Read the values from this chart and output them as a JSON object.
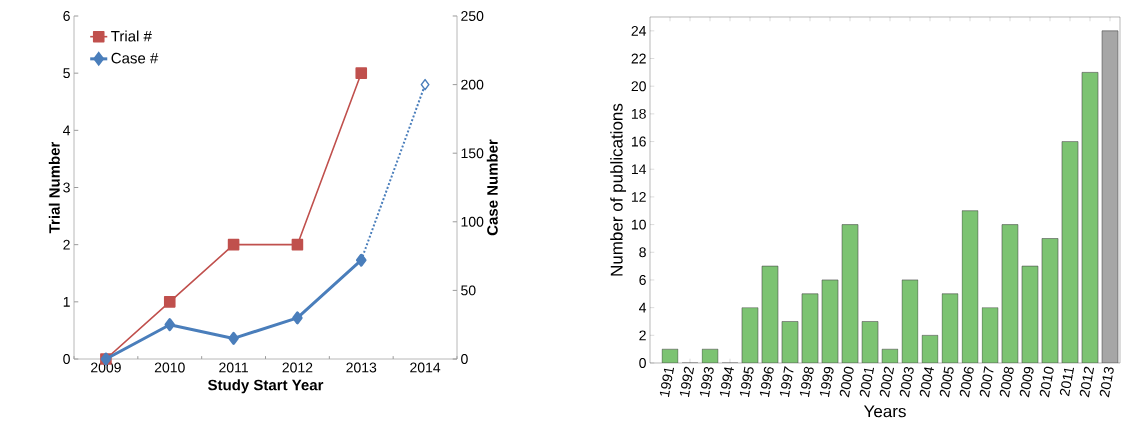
{
  "chart_data": [
    {
      "type": "line",
      "xlabel": "Study Start Year",
      "ylabel": "Trial Number",
      "y2label": "Case Number",
      "categories": [
        "2009",
        "2010",
        "2011",
        "2012",
        "2013",
        "2014"
      ],
      "series": [
        {
          "name": "Trial #",
          "color": "#c0504d",
          "marker": "square",
          "values": [
            0,
            1,
            2,
            2,
            5,
            null
          ]
        },
        {
          "name": "Case #",
          "color": "#4a7ebb",
          "marker": "diamond",
          "axis": "y2",
          "values": [
            0,
            25,
            15,
            30,
            72,
            null
          ]
        },
        {
          "color": "#4a7ebb",
          "marker": "diamond",
          "axis": "y2",
          "line_style": "dotted",
          "values": [
            null,
            null,
            null,
            null,
            72,
            200
          ]
        }
      ],
      "ylim": [
        0,
        6
      ],
      "yticks": [
        0,
        1,
        2,
        3,
        4,
        5,
        6
      ],
      "y2lim": [
        0,
        250
      ],
      "y2ticks": [
        0,
        50,
        100,
        150,
        200,
        250
      ],
      "grid": false,
      "legend": "top left"
    },
    {
      "type": "bar",
      "xlabel": "Years",
      "ylabel": "Number of publications",
      "categories": [
        "1991",
        "1992",
        "1993",
        "1994",
        "1995",
        "1996",
        "1997",
        "1998",
        "1999",
        "2000",
        "2001",
        "2002",
        "2003",
        "2004",
        "2005",
        "2006",
        "2007",
        "2008",
        "2009",
        "2010",
        "2011",
        "2012",
        "2013"
      ],
      "values": [
        1,
        0,
        1,
        0,
        4,
        7,
        3,
        5,
        6,
        10,
        3,
        1,
        6,
        2,
        5,
        11,
        4,
        10,
        7,
        9,
        16,
        21,
        24
      ],
      "colors": [
        "#7cc372",
        "#7cc372",
        "#7cc372",
        "#7cc372",
        "#7cc372",
        "#7cc372",
        "#7cc372",
        "#7cc372",
        "#7cc372",
        "#7cc372",
        "#7cc372",
        "#7cc372",
        "#7cc372",
        "#7cc372",
        "#7cc372",
        "#7cc372",
        "#7cc372",
        "#7cc372",
        "#7cc372",
        "#7cc372",
        "#7cc372",
        "#7cc372",
        "#a6a6a6"
      ],
      "ylim": [
        0,
        25
      ],
      "yticks": [
        0,
        2,
        4,
        6,
        8,
        10,
        12,
        14,
        16,
        18,
        20,
        22,
        24
      ],
      "grid": false
    }
  ]
}
